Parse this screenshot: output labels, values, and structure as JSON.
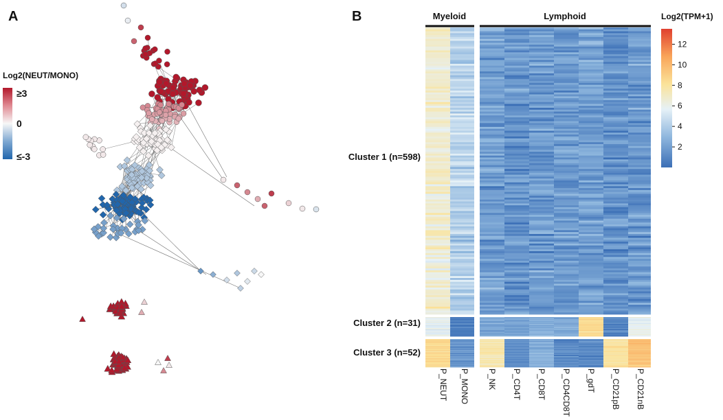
{
  "chart_data": [
    {
      "type": "network",
      "panel_label": "A",
      "legend": {
        "title": "Log2(NEUT/MONO)",
        "ticks": [
          "≥3",
          "0",
          "≤-3"
        ],
        "colors": [
          "#b2182b",
          "#f7f7f7",
          "#2166ac"
        ],
        "range": [
          -3,
          3
        ]
      },
      "node_shapes": [
        "circle",
        "diamond",
        "triangle"
      ]
    },
    {
      "type": "heatmap",
      "panel_label": "B",
      "column_groups": [
        {
          "label": "Myeloid",
          "columns": [
            "P_NEUT",
            "P_MONO"
          ]
        },
        {
          "label": "Lymphoid",
          "columns": [
            "P_NK",
            "P_CD4T",
            "P_CD8T",
            "P_CD4CD8T",
            "P_gdT",
            "P_CD21pB",
            "P_CD21nB"
          ]
        }
      ],
      "columns": [
        "P_NEUT",
        "P_MONO",
        "P_NK",
        "P_CD4T",
        "P_CD8T",
        "P_CD4CD8T",
        "P_gdT",
        "P_CD21pB",
        "P_CD21nB"
      ],
      "clusters": [
        {
          "label": "Cluster 1 (n=598)",
          "n": 598,
          "mean_log2tpm": [
            6.5,
            4.0,
            1.8,
            1.4,
            1.6,
            1.5,
            1.8,
            1.3,
            1.6
          ]
        },
        {
          "label": "Cluster 2 (n=31)",
          "n": 31,
          "mean_log2tpm": [
            5.5,
            0.5,
            2.2,
            2.0,
            2.4,
            2.2,
            8.5,
            0.8,
            5.5
          ]
        },
        {
          "label": "Cluster 3 (n=52)",
          "n": 52,
          "mean_log2tpm": [
            8.5,
            1.5,
            7.5,
            1.2,
            2.5,
            1.0,
            1.0,
            8.0,
            9.5
          ]
        }
      ],
      "colorbar": {
        "title": "Log2(TPM+1)",
        "ticks": [
          2,
          4,
          6,
          8,
          10,
          12
        ],
        "range": [
          0,
          13.5
        ],
        "colors": [
          "#3b6fb6",
          "#8fb7de",
          "#e6f1f7",
          "#fbe39a",
          "#f9a55a",
          "#e0402f"
        ]
      }
    }
  ]
}
